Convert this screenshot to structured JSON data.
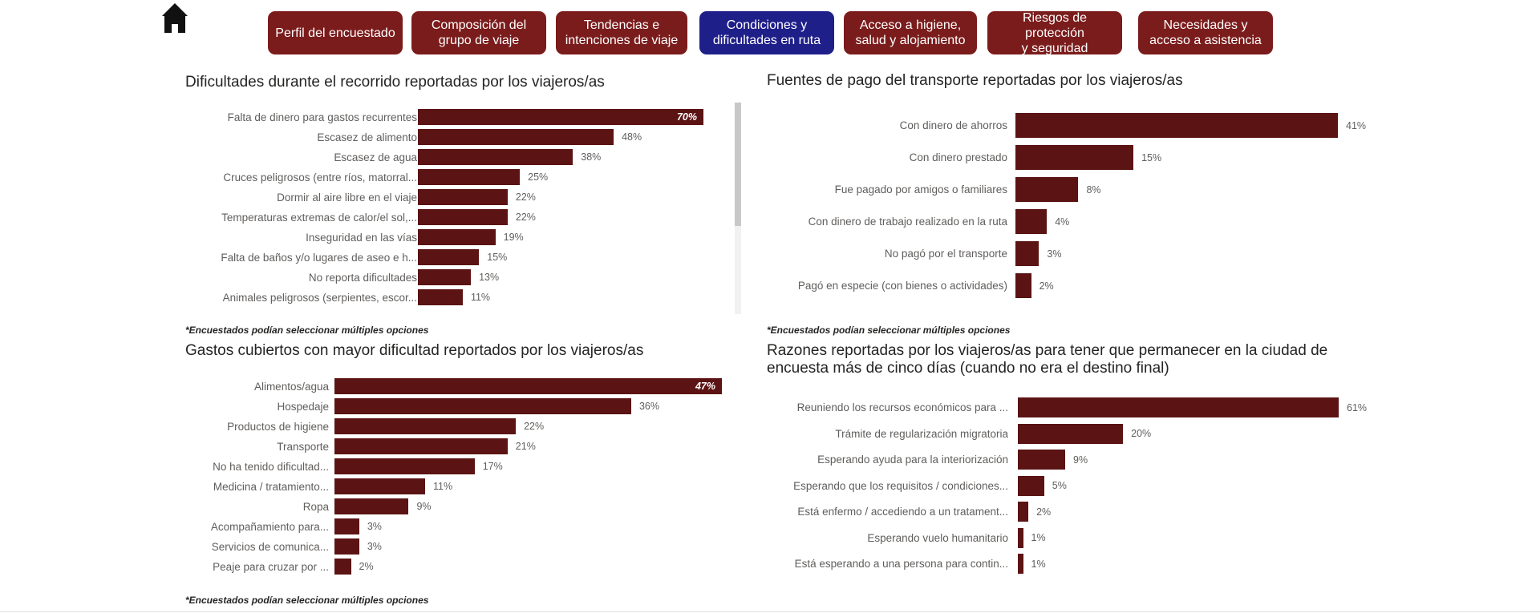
{
  "nav": {
    "home_icon": "home-icon",
    "buttons": [
      {
        "label": "Perfil del encuestado",
        "active": false
      },
      {
        "label": "Composición del\ngrupo de viaje",
        "active": false
      },
      {
        "label": "Tendencias e\nintenciones de viaje",
        "active": false
      },
      {
        "label": "Condiciones y\ndificultades en ruta",
        "active": true
      },
      {
        "label": "Acceso a higiene,\nsalud y alojamiento",
        "active": false
      },
      {
        "label": "Riesgos de protección\ny seguridad",
        "active": false
      },
      {
        "label": "Necesidades y\nacceso a asistencia",
        "active": false
      }
    ]
  },
  "colors": {
    "bar": "#5b1313",
    "nav_button": "#7b1c1c",
    "nav_active": "#1f1f8a"
  },
  "note": "*Encuestados podían seleccionar múltiples opciones",
  "chart_data": [
    {
      "type": "bar",
      "orientation": "horizontal",
      "title": "Dificultades durante el recorrido reportadas por los viajeros/as",
      "categories": [
        "Falta de dinero para gastos recurrentes",
        "Escasez de alimento",
        "Escasez de agua",
        "Cruces peligrosos (entre ríos, matorral...",
        "Dormir al aire libre en el viaje",
        "Temperaturas extremas de calor/el sol,...",
        "Inseguridad en las vías",
        "Falta de baños y/o lugares de aseo e h...",
        "No reporta dificultades",
        "Animales peligrosos (serpientes, escor..."
      ],
      "values": [
        70,
        48,
        38,
        25,
        22,
        22,
        19,
        15,
        13,
        11
      ],
      "labels": [
        "70%",
        "48%",
        "38%",
        "25%",
        "22%",
        "22%",
        "19%",
        "15%",
        "13%",
        "11%"
      ],
      "xlim": [
        0,
        70
      ],
      "scrollable": true
    },
    {
      "type": "bar",
      "orientation": "horizontal",
      "title": "Fuentes de pago del transporte reportadas por los viajeros/as",
      "categories": [
        "Con dinero de ahorros",
        "Con dinero prestado",
        "Fue pagado por amigos o familiares",
        "Con dinero de trabajo realizado en la ruta",
        "No pagó por el transporte",
        "Pagó en especie (con bienes o actividades)"
      ],
      "values": [
        41,
        15,
        8,
        4,
        3,
        2
      ],
      "labels": [
        "41%",
        "15%",
        "8%",
        "4%",
        "3%",
        "2%"
      ],
      "xlim": [
        0,
        41
      ]
    },
    {
      "type": "bar",
      "orientation": "horizontal",
      "title": "Gastos cubiertos con mayor dificultad reportados por los viajeros/as",
      "categories": [
        "Alimentos/agua",
        "Hospedaje",
        "Productos de higiene",
        "Transporte",
        "No ha tenido dificultad...",
        "Medicina / tratamiento...",
        "Ropa",
        "Acompañamiento para...",
        "Servicios de comunica...",
        "Peaje para cruzar por ..."
      ],
      "values": [
        47,
        36,
        22,
        21,
        17,
        11,
        9,
        3,
        3,
        2
      ],
      "labels": [
        "47%",
        "36%",
        "22%",
        "21%",
        "17%",
        "11%",
        "9%",
        "3%",
        "3%",
        "2%"
      ],
      "xlim": [
        0,
        47
      ]
    },
    {
      "type": "bar",
      "orientation": "horizontal",
      "title": "Razones reportadas por los viajeros/as para tener que permanecer en la ciudad de encuesta más de cinco días (cuando no era el destino final)",
      "categories": [
        "Reuniendo los recursos económicos para ...",
        "Trámite de regularización migratoria",
        "Esperando ayuda para la interiorización",
        "Esperando que los requisitos / condiciones...",
        "Está enfermo / accediendo a un tratament...",
        "Esperando vuelo humanitario",
        "Está esperando a una persona para contin..."
      ],
      "values": [
        61,
        20,
        9,
        5,
        2,
        1,
        1
      ],
      "labels": [
        "61%",
        "20%",
        "9%",
        "5%",
        "2%",
        "1%",
        "1%"
      ],
      "xlim": [
        0,
        61
      ]
    }
  ]
}
